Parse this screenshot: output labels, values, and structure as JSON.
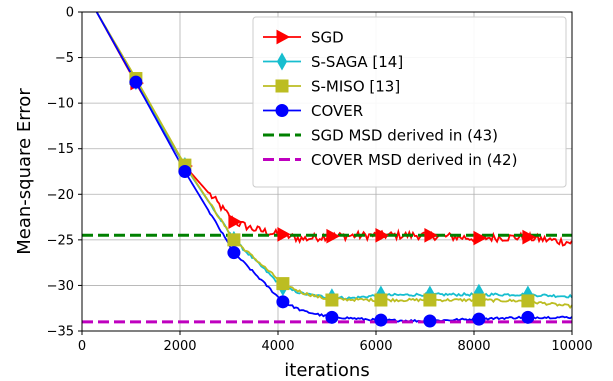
{
  "chart_data": {
    "type": "line",
    "xlabel": "iterations",
    "ylabel": "Mean-square Error",
    "xlim": [
      0,
      10000
    ],
    "ylim": [
      -35,
      0
    ],
    "xticks": [
      0,
      2000,
      4000,
      6000,
      8000,
      10000
    ],
    "yticks": [
      0,
      -5,
      -10,
      -15,
      -20,
      -25,
      -30,
      -35
    ],
    "grid": true,
    "legend_position": "top-right",
    "series": [
      {
        "name": "SGD",
        "color": "#ff0000",
        "marker": "triangle-right",
        "noise": 0.45,
        "x": [
          300,
          1100,
          2100,
          3100,
          3500,
          4000,
          4500,
          5000,
          6000,
          7000,
          8000,
          9000,
          10000
        ],
        "y": [
          0,
          -7.8,
          -16.9,
          -23.0,
          -23.8,
          -24.4,
          -24.9,
          -24.6,
          -24.5,
          -24.5,
          -24.8,
          -24.7,
          -25.3
        ],
        "markers_x": [
          1100,
          2100,
          3100,
          4100,
          5100,
          6100,
          7100,
          8100,
          9100
        ],
        "markers_y": [
          -7.8,
          -16.9,
          -23.0,
          -24.4,
          -24.6,
          -24.5,
          -24.5,
          -24.8,
          -24.7
        ]
      },
      {
        "name": "S-SAGA [14]",
        "color": "#17becf",
        "marker": "thin-diamond",
        "noise": 0.15,
        "x": [
          300,
          1100,
          2100,
          3100,
          4100,
          4500,
          5000,
          5500,
          6000,
          7000,
          8000,
          9000,
          10000
        ],
        "y": [
          0,
          -7.6,
          -16.9,
          -25.0,
          -30.2,
          -30.9,
          -31.3,
          -31.4,
          -31.1,
          -31.0,
          -31.0,
          -31.0,
          -31.2
        ],
        "markers_x": [
          1100,
          2100,
          3100,
          4100,
          5100,
          6100,
          7100,
          8100,
          9100
        ],
        "markers_y": [
          -7.6,
          -16.9,
          -25.0,
          -30.2,
          -31.3,
          -31.0,
          -31.0,
          -30.8,
          -31.0
        ]
      },
      {
        "name": "S-MISO [13]",
        "color": "#bcbd22",
        "marker": "square",
        "noise": 0.15,
        "x": [
          300,
          1100,
          2100,
          3100,
          4100,
          4500,
          5000,
          6000,
          7000,
          8000,
          9000,
          10000
        ],
        "y": [
          0,
          -7.3,
          -16.8,
          -25.0,
          -29.8,
          -30.8,
          -31.5,
          -31.6,
          -31.6,
          -31.6,
          -31.7,
          -32.3
        ],
        "markers_x": [
          1100,
          2100,
          3100,
          4100,
          5100,
          6100,
          7100,
          8100,
          9100
        ],
        "markers_y": [
          -7.3,
          -16.8,
          -25.0,
          -29.8,
          -31.6,
          -31.6,
          -31.6,
          -31.6,
          -31.7
        ]
      },
      {
        "name": "COVER",
        "color": "#0000ff",
        "marker": "circle",
        "noise": 0.12,
        "x": [
          300,
          1100,
          2100,
          3100,
          4100,
          4500,
          5000,
          5500,
          6000,
          7000,
          8000,
          9000,
          10000
        ],
        "y": [
          0,
          -7.7,
          -17.5,
          -26.4,
          -31.8,
          -32.8,
          -33.4,
          -33.6,
          -33.8,
          -33.9,
          -33.7,
          -33.5,
          -33.5
        ],
        "markers_x": [
          1100,
          2100,
          3100,
          4100,
          5100,
          6100,
          7100,
          8100,
          9100
        ],
        "markers_y": [
          -7.7,
          -17.5,
          -26.4,
          -31.8,
          -33.5,
          -33.8,
          -33.9,
          -33.7,
          -33.5
        ]
      },
      {
        "name": "SGD MSD derived in (43)",
        "color": "#008000",
        "dashed": true,
        "x": [
          0,
          10000
        ],
        "y": [
          -24.5,
          -24.5
        ]
      },
      {
        "name": "COVER MSD derived in (42)",
        "color": "#bf00bf",
        "dashed": true,
        "x": [
          0,
          10000
        ],
        "y": [
          -34.0,
          -34.0
        ]
      }
    ]
  }
}
